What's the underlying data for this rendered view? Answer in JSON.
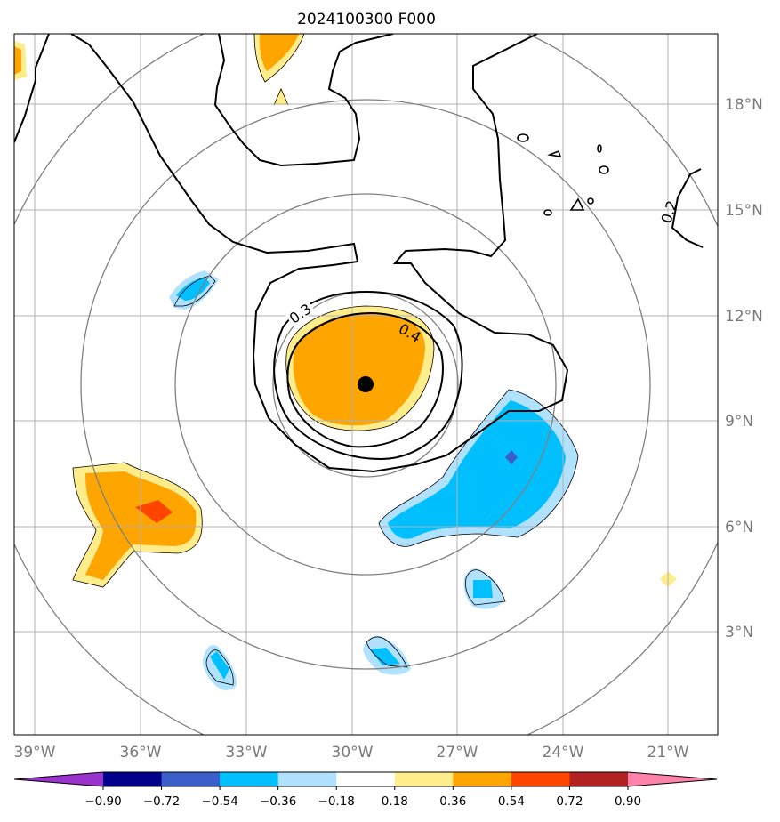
{
  "title": "2024100300 F000",
  "map": {
    "lon_range": [
      -39.8,
      -19.8
    ],
    "lat_range": [
      0.0,
      20.0
    ],
    "lon_ticks": [
      -39,
      -36,
      -33,
      -30,
      -27,
      -24,
      -21
    ],
    "lon_tick_labels": [
      "39°W",
      "36°W",
      "33°W",
      "30°W",
      "27°W",
      "24°W",
      "21°W"
    ],
    "lat_ticks": [
      3,
      6,
      9,
      12,
      15,
      18
    ],
    "lat_tick_labels": [
      "3°N",
      "6°N",
      "9°N",
      "12°N",
      "15°N",
      "18°N"
    ],
    "grid": true,
    "center": {
      "lon": -29.6,
      "lat": 10.0
    },
    "range_rings": 4
  },
  "contour_labels": [
    "0.2",
    "0.3",
    "0.4"
  ],
  "colorbar": {
    "tick_labels": [
      "−0.90",
      "−0.72",
      "−0.54",
      "−0.36",
      "−0.18",
      "0.18",
      "0.36",
      "0.54",
      "0.72",
      "0.90"
    ],
    "colors": [
      "#9a32cd",
      "#00008b",
      "#3a5fcd",
      "#00bfff",
      "#b0e2ff",
      "#ffffff",
      "#ffec8b",
      "#ffa500",
      "#ff4500",
      "#b22222",
      "#ff82ab"
    ]
  },
  "legend_colors": {
    "pos_light": "#ffec8b",
    "pos_med": "#ffa500",
    "pos_strong": "#ff4500",
    "neg_light": "#b0e2ff",
    "neg_med": "#00bfff",
    "neg_strong": "#3a5fcd"
  }
}
